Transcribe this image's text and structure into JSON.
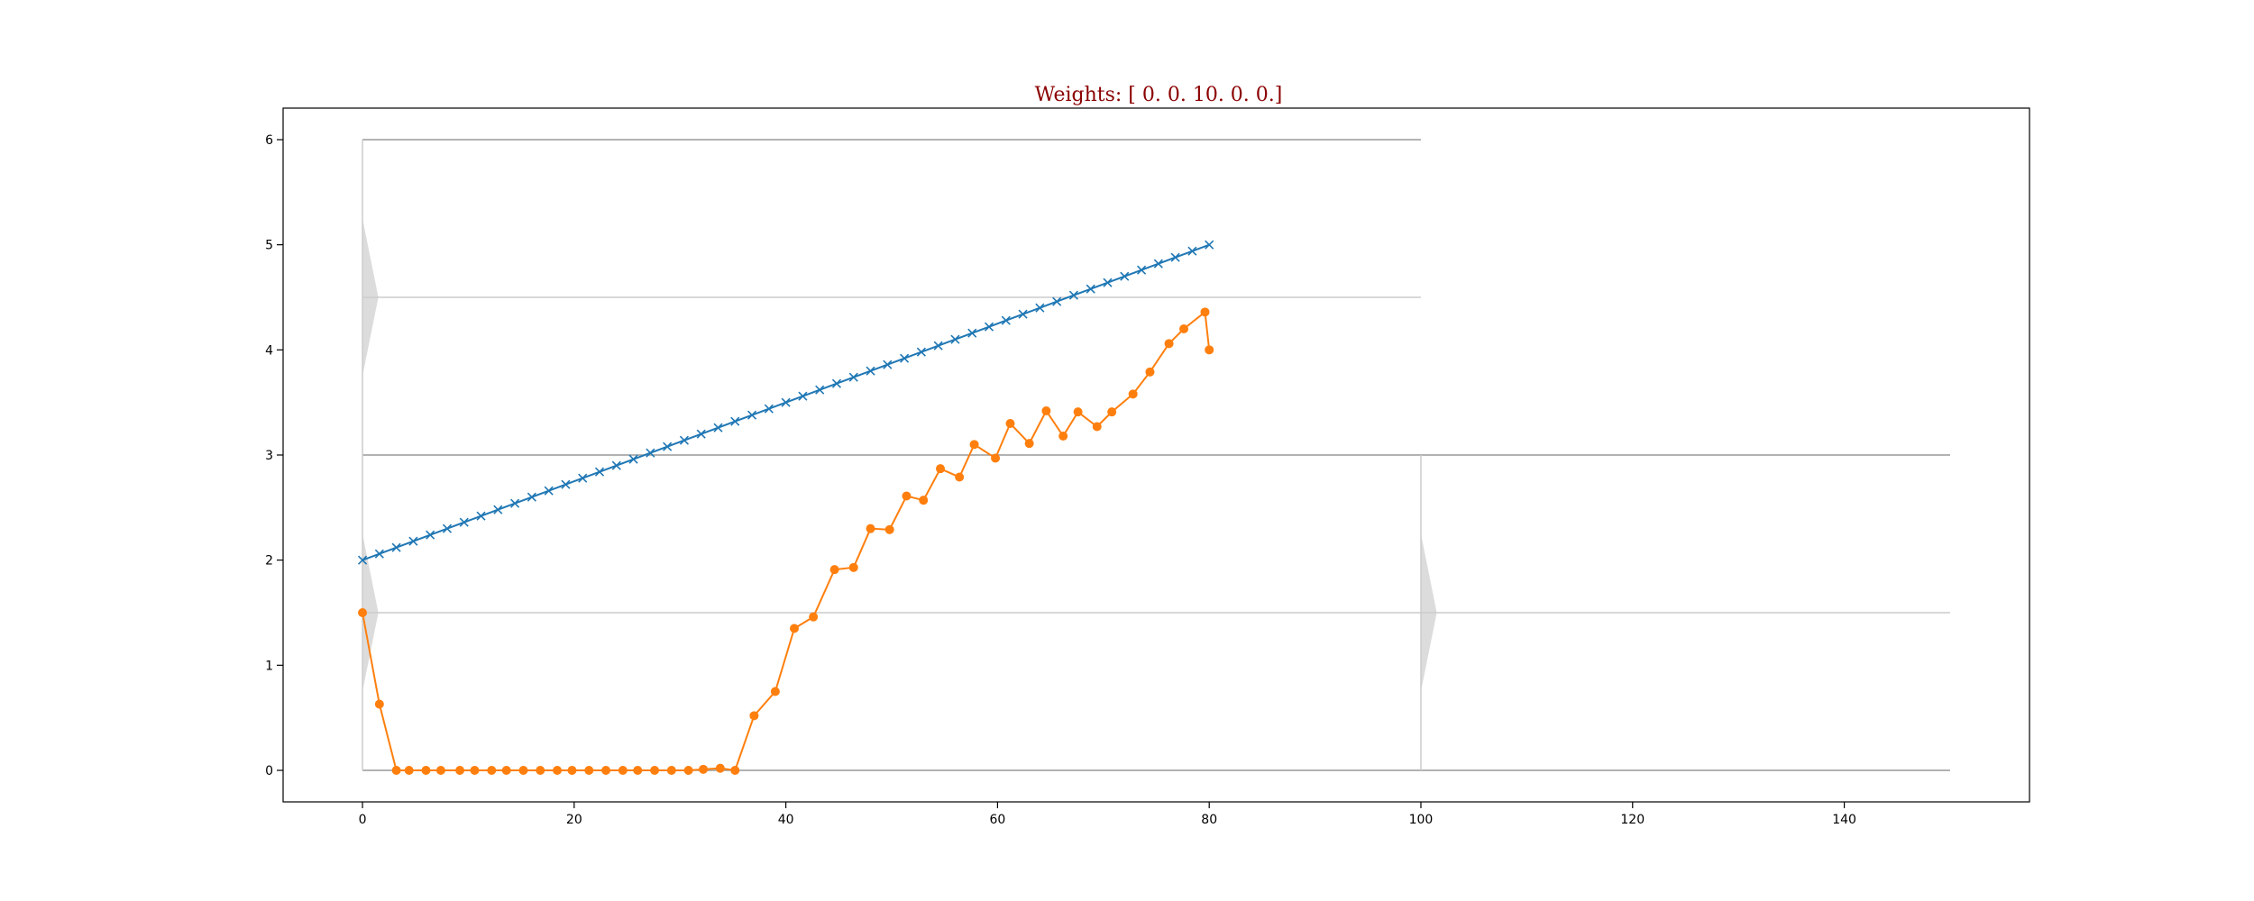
{
  "chart_data": {
    "type": "line",
    "title": "Weights: [  0.   0.  10.   0.   0.]",
    "xlabel": "",
    "ylabel": "",
    "xlim": [
      -7.5,
      157.5
    ],
    "ylim": [
      -0.3,
      6.3
    ],
    "xticks": [
      0,
      20,
      40,
      60,
      80,
      100,
      120,
      140
    ],
    "yticks": [
      0,
      1,
      2,
      3,
      4,
      5,
      6
    ],
    "grid": false,
    "legend": "none",
    "colors": {
      "series_blue": "#1f77b4",
      "series_orange": "#ff7f0e",
      "title": "#8b0000",
      "structure_dark": "#999999",
      "structure_light": "#cccccc",
      "structure_fill": "#dcdcdc"
    },
    "series": [
      {
        "marker": "x",
        "color": "#1f77b4",
        "x": [
          0.0,
          1.6,
          3.2,
          4.8,
          6.4,
          8.0,
          9.6,
          11.2,
          12.8,
          14.4,
          16.0,
          17.6,
          19.2,
          20.8,
          22.4,
          24.0,
          25.6,
          27.2,
          28.8,
          30.4,
          32.0,
          33.6,
          35.2,
          36.8,
          38.4,
          40.0,
          41.6,
          43.2,
          44.8,
          46.4,
          48.0,
          49.6,
          51.2,
          52.8,
          54.4,
          56.0,
          57.6,
          59.2,
          60.8,
          62.4,
          64.0,
          65.6,
          67.2,
          68.8,
          70.4,
          72.0,
          73.6,
          75.2,
          76.8,
          78.4,
          80.0
        ],
        "y": [
          2.0,
          2.06,
          2.12,
          2.18,
          2.24,
          2.3,
          2.36,
          2.42,
          2.48,
          2.54,
          2.6,
          2.66,
          2.72,
          2.78,
          2.84,
          2.9,
          2.96,
          3.02,
          3.08,
          3.14,
          3.2,
          3.26,
          3.32,
          3.38,
          3.44,
          3.5,
          3.56,
          3.62,
          3.68,
          3.74,
          3.8,
          3.86,
          3.92,
          3.98,
          4.04,
          4.1,
          4.16,
          4.22,
          4.28,
          4.34,
          4.4,
          4.46,
          4.52,
          4.58,
          4.64,
          4.7,
          4.76,
          4.82,
          4.88,
          4.94,
          5.0
        ]
      },
      {
        "marker": "o",
        "color": "#ff7f0e",
        "x": [
          0.0,
          1.6,
          3.2,
          4.4,
          6.0,
          7.4,
          9.2,
          10.6,
          12.2,
          13.6,
          15.2,
          16.8,
          18.4,
          19.8,
          21.4,
          23.0,
          24.6,
          26.0,
          27.6,
          29.2,
          30.8,
          32.2,
          33.8,
          35.2,
          37.0,
          39.0,
          40.8,
          42.6,
          44.6,
          46.4,
          48.0,
          49.8,
          51.4,
          53.0,
          54.6,
          56.4,
          57.8,
          59.8,
          61.2,
          63.0,
          64.6,
          66.2,
          67.6,
          69.4,
          70.8,
          72.8,
          74.4,
          76.2,
          77.6,
          79.6,
          80.0
        ],
        "y": [
          1.5,
          0.63,
          0.0,
          0.0,
          0.0,
          0.0,
          0.0,
          0.0,
          0.0,
          0.0,
          0.0,
          0.0,
          0.0,
          0.0,
          0.0,
          0.0,
          0.0,
          0.0,
          0.0,
          0.0,
          0.0,
          0.01,
          0.02,
          0.0,
          0.52,
          0.75,
          1.35,
          1.46,
          1.91,
          1.93,
          2.3,
          2.29,
          2.61,
          2.57,
          2.87,
          2.79,
          3.1,
          2.97,
          3.3,
          3.11,
          3.42,
          3.18,
          3.41,
          3.27,
          3.41,
          3.58,
          3.79,
          4.06,
          4.2,
          4.36,
          4.0
        ]
      }
    ],
    "structure": {
      "baseline_y": 0,
      "mid_y": 3,
      "top_y": 6,
      "level_low_y": 1.5,
      "level_high_y": 4.5,
      "x_left": 0,
      "x_mid": 100,
      "x_right": 150,
      "bumps": [
        {
          "x": 0,
          "y": 4.5,
          "halfspan": 0.75,
          "amp": 1.5
        },
        {
          "x": 0,
          "y": 1.5,
          "halfspan": 0.75,
          "amp": 1.5
        },
        {
          "x": 100,
          "y": 1.5,
          "halfspan": 0.75,
          "amp": 1.5
        }
      ]
    }
  }
}
